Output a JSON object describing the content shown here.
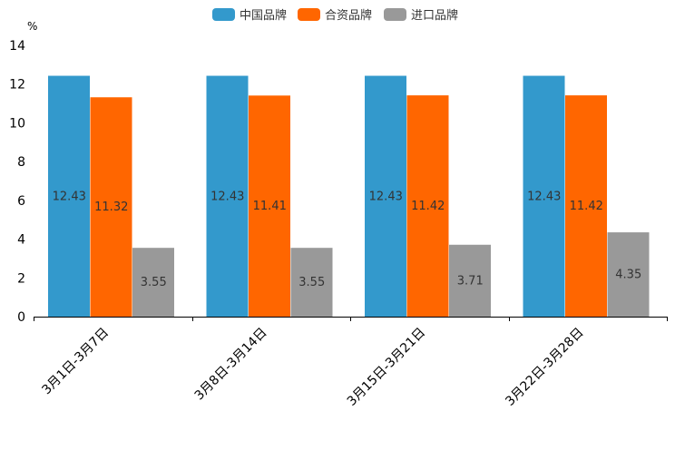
{
  "chart_data": {
    "type": "bar",
    "title": "",
    "unit": "%",
    "xlabel": "",
    "ylabel": "",
    "ylim": [
      0,
      14
    ],
    "yticks": [
      0,
      2,
      4,
      6,
      8,
      10,
      12,
      14
    ],
    "grid": false,
    "legend_position": "top-center",
    "categories": [
      "3月1日-3月7日",
      "3月8日-3月14日",
      "3月15日-3月21日",
      "3月22日-3月28日"
    ],
    "series": [
      {
        "name": "中国品牌",
        "color": "#3399cc",
        "values": [
          12.43,
          12.43,
          12.43,
          12.43
        ]
      },
      {
        "name": "合资品牌",
        "color": "#ff6600",
        "values": [
          11.32,
          11.41,
          11.42,
          11.42
        ]
      },
      {
        "name": "进口品牌",
        "color": "#999999",
        "values": [
          3.55,
          3.55,
          3.71,
          4.35
        ]
      }
    ]
  }
}
